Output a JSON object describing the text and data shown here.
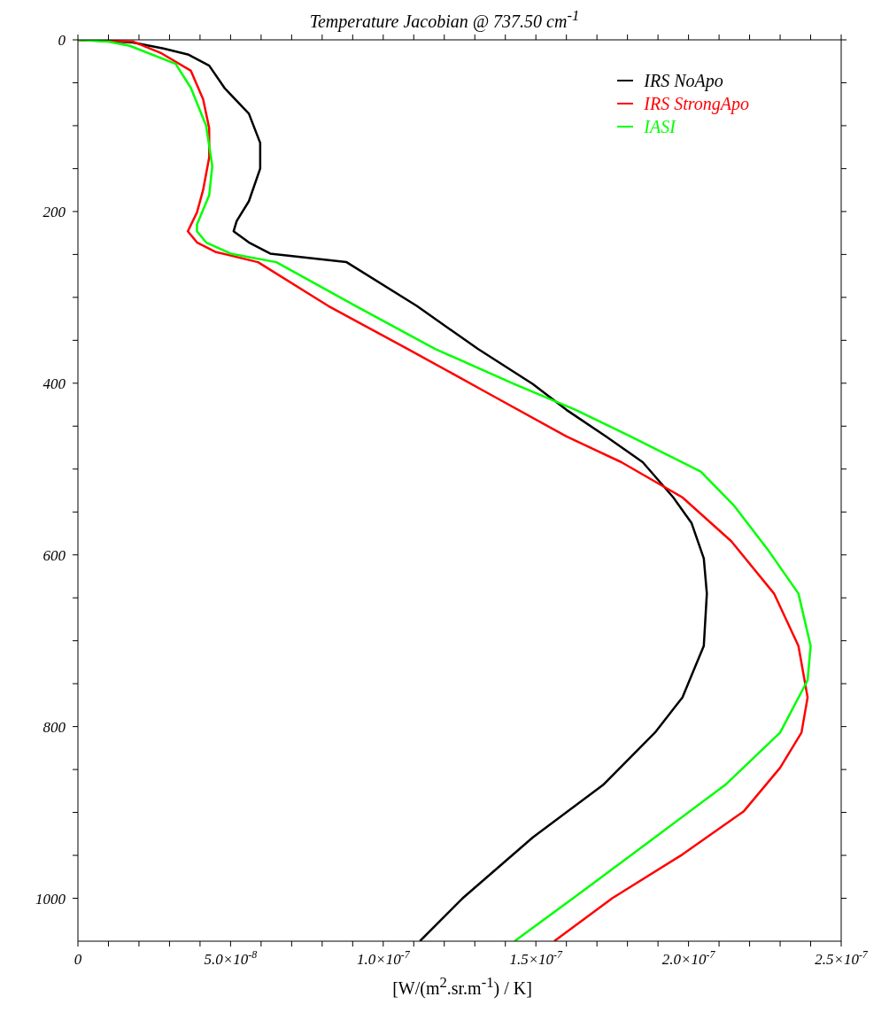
{
  "chart_data": {
    "type": "line",
    "orientation": "horizontal",
    "title": "Temperature Jacobian @  737.50 cm$^{-1}$",
    "xlabel": "[W/(m$^{2}$.sr.m$^{-1}$) / K]",
    "xlim": [
      0,
      2.5e-07
    ],
    "xticks": [
      0,
      {
        "value": 1e-08,
        "label": null
      },
      {
        "value": 2e-08,
        "label": null
      },
      {
        "value": 3e-08,
        "label": null
      },
      {
        "value": 4e-08,
        "label": null
      },
      {
        "value": 5e-08,
        "label": "5.0×10$^{-8}$"
      },
      {
        "value": 6e-08,
        "label": null
      },
      {
        "value": 7e-08,
        "label": null
      },
      {
        "value": 8e-08,
        "label": null
      },
      {
        "value": 9e-08,
        "label": null
      },
      {
        "value": 1e-07,
        "label": "1.0×10$^{-7}$"
      },
      {
        "value": 1.1e-07,
        "label": null
      },
      {
        "value": 1.2e-07,
        "label": null
      },
      {
        "value": 1.3e-07,
        "label": null
      },
      {
        "value": 1.4e-07,
        "label": null
      },
      {
        "value": 1.5e-07,
        "label": "1.5×10$^{-7}$"
      },
      {
        "value": 1.6e-07,
        "label": null
      },
      {
        "value": 1.7e-07,
        "label": null
      },
      {
        "value": 1.8e-07,
        "label": null
      },
      {
        "value": 1.9e-07,
        "label": null
      },
      {
        "value": 2e-07,
        "label": "2.0×10$^{-7}$"
      },
      {
        "value": 2.1e-07,
        "label": null
      },
      {
        "value": 2.2e-07,
        "label": null
      },
      {
        "value": 2.3e-07,
        "label": null
      },
      {
        "value": 2.4e-07,
        "label": null
      },
      {
        "value": 2.5e-07,
        "label": "2.5×10$^{-7}$"
      }
    ],
    "ylim": [
      1050,
      0
    ],
    "yticks": [
      0,
      {
        "value": 50,
        "label": null
      },
      {
        "value": 100,
        "label": null
      },
      {
        "value": 150,
        "label": null
      },
      200,
      {
        "value": 250,
        "label": null
      },
      {
        "value": 300,
        "label": null
      },
      {
        "value": 350,
        "label": null
      },
      400,
      {
        "value": 450,
        "label": null
      },
      {
        "value": 500,
        "label": null
      },
      {
        "value": 550,
        "label": null
      },
      600,
      {
        "value": 650,
        "label": null
      },
      {
        "value": 700,
        "label": null
      },
      {
        "value": 750,
        "label": null
      },
      800,
      {
        "value": 850,
        "label": null
      },
      {
        "value": 900,
        "label": null
      },
      {
        "value": 950,
        "label": null
      },
      1000
    ],
    "grid": false,
    "legend": "top right",
    "marker": "none",
    "line_style": "solid",
    "series": [
      {
        "name": "IRS NoApo",
        "color": "#000000",
        "x": [
          0,
          1,
          3,
          10,
          17,
          30,
          56,
          86,
          120,
          150,
          188,
          211,
          223,
          236,
          249,
          259,
          310,
          360,
          401,
          431,
          462,
          492,
          533,
          563,
          604,
          645,
          706,
          766,
          807,
          868,
          929,
          1000,
          1050
        ],
        "values": [
          0,
          7e-09,
          1.8e-08,
          2.8e-08,
          3.6e-08,
          4.3e-08,
          4.8e-08,
          5.6e-08,
          5.97e-08,
          5.97e-08,
          5.6e-08,
          5.2e-08,
          5.1e-08,
          5.6e-08,
          6.3e-08,
          8.8e-08,
          1.11e-07,
          1.31e-07,
          1.49e-07,
          1.6e-07,
          1.73e-07,
          1.85e-07,
          1.95e-07,
          2.01e-07,
          2.05e-07,
          2.06e-07,
          2.05e-07,
          1.98e-07,
          1.89e-07,
          1.72e-07,
          1.49e-07,
          1.26e-07,
          1.12e-07
        ]
      },
      {
        "name": "IRS StrongApo",
        "color": "#ff0000",
        "x": [
          0,
          2,
          15,
          36,
          69,
          103,
          137,
          175,
          201,
          223,
          236,
          247,
          259,
          310,
          360,
          411,
          462,
          492,
          533,
          584,
          645,
          706,
          766,
          807,
          848,
          899,
          949,
          1000,
          1050
        ],
        "values": [
          0,
          1.8e-08,
          2.7e-08,
          3.7e-08,
          4.1e-08,
          4.3e-08,
          4.3e-08,
          4.1e-08,
          3.9e-08,
          3.6e-08,
          3.9e-08,
          4.5e-08,
          5.9e-08,
          8.2e-08,
          1.08e-07,
          1.34e-07,
          1.6e-07,
          1.78e-07,
          1.98e-07,
          2.14e-07,
          2.28e-07,
          2.36e-07,
          2.39e-07,
          2.37e-07,
          2.3e-07,
          2.18e-07,
          1.98e-07,
          1.75e-07,
          1.56e-07
        ]
      },
      {
        "name": "IASI",
        "color": "#00ff00",
        "x": [
          0,
          2,
          7,
          28,
          56,
          100,
          147,
          181,
          215,
          223,
          236,
          249,
          259,
          310,
          360,
          401,
          431,
          462,
          503,
          543,
          594,
          645,
          706,
          746,
          807,
          868,
          929,
          990,
          1050
        ],
        "values": [
          0,
          1e-08,
          1.7e-08,
          3.2e-08,
          3.7e-08,
          4.2e-08,
          4.4e-08,
          4.3e-08,
          3.9e-08,
          3.9e-08,
          4.2e-08,
          5e-08,
          6.5e-08,
          9.1e-08,
          1.17e-07,
          1.43e-07,
          1.63e-07,
          1.81e-07,
          2.04e-07,
          2.15e-07,
          2.26e-07,
          2.36e-07,
          2.4e-07,
          2.39e-07,
          2.3e-07,
          2.12e-07,
          1.89e-07,
          1.66e-07,
          1.43e-07
        ]
      }
    ]
  }
}
